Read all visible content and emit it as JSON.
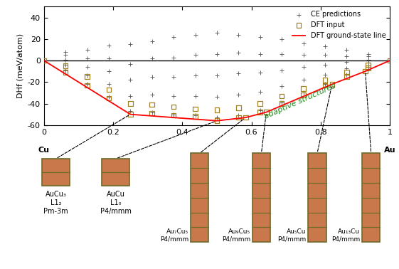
{
  "chart_data": {
    "type": "scatter",
    "y_label": "DHf (meV/atom)",
    "xlim": [
      0,
      1
    ],
    "ylim": [
      -60,
      50
    ],
    "xticks": [
      0,
      0.2,
      0.4,
      0.6,
      0.8,
      1
    ],
    "yticks": [
      -60,
      -40,
      -20,
      0,
      20,
      40
    ],
    "grid": false,
    "legend": "upper right",
    "reference_line": 0,
    "x_end_labels": [
      "Cu",
      "Au"
    ],
    "annotations": [
      {
        "text": "adaptive structures",
        "x": 0.74,
        "y": -38,
        "color": "#228b22"
      }
    ],
    "series": [
      {
        "name": "CE predictions",
        "type": "scatter",
        "color": "#555555",
        "marker": "+",
        "x": [
          0.0625,
          0.0625,
          0.0625,
          0.0625,
          0.0625,
          0.125,
          0.125,
          0.125,
          0.125,
          0.125,
          0.1875,
          0.1875,
          0.1875,
          0.1875,
          0.1875,
          0.25,
          0.25,
          0.25,
          0.25,
          0.25,
          0.3125,
          0.3125,
          0.3125,
          0.3125,
          0.3125,
          0.375,
          0.375,
          0.375,
          0.375,
          0.375,
          0.4375,
          0.4375,
          0.4375,
          0.4375,
          0.4375,
          0.5,
          0.5,
          0.5,
          0.5,
          0.5,
          0.5625,
          0.5625,
          0.5625,
          0.5625,
          0.5625,
          0.625,
          0.625,
          0.625,
          0.625,
          0.625,
          0.6875,
          0.6875,
          0.6875,
          0.6875,
          0.6875,
          0.75,
          0.75,
          0.75,
          0.75,
          0.75,
          0.8125,
          0.8125,
          0.8125,
          0.8125,
          0.8125,
          0.875,
          0.875,
          0.875,
          0.875,
          0.875,
          0.9375,
          0.9375,
          0.9375,
          0.9375,
          0.9375
        ],
        "values": [
          -9,
          -4,
          1,
          5,
          8,
          -22,
          -14,
          -6,
          2,
          10,
          -34,
          -22,
          -10,
          2,
          14,
          -47,
          -33,
          -18,
          -3,
          15,
          -48,
          -32,
          -15,
          2,
          18,
          -50,
          -33,
          -15,
          3,
          22,
          -51,
          -33,
          -14,
          5,
          24,
          -53,
          -34,
          -14,
          6,
          26,
          -51,
          -32,
          -12,
          7,
          24,
          -46,
          -29,
          -11,
          6,
          22,
          -39,
          -24,
          -9,
          6,
          20,
          -30,
          -18,
          -6,
          5,
          16,
          -22,
          -13,
          -4,
          5,
          13,
          -13,
          -7,
          -1,
          4,
          10,
          -6,
          -2,
          1,
          4,
          6
        ]
      },
      {
        "name": "DFT input",
        "type": "scatter",
        "color": "#a08020",
        "marker": "square",
        "x": [
          0,
          0.0625,
          0.0625,
          0.125,
          0.125,
          0.1875,
          0.1875,
          0.25,
          0.25,
          0.3125,
          0.3125,
          0.375,
          0.375,
          0.4375,
          0.4375,
          0.5,
          0.5,
          0.5625,
          0.5625,
          0.583,
          0.625,
          0.625,
          0.643,
          0.6875,
          0.6875,
          0.75,
          0.75,
          0.8125,
          0.8125,
          0.833,
          0.875,
          0.875,
          0.929,
          0.9375,
          0.9375,
          1
        ],
        "values": [
          0,
          -11,
          -5,
          -23,
          -15,
          -35,
          -27,
          -50,
          -40,
          -49,
          -41,
          -51,
          -43,
          -52,
          -45,
          -56,
          -46,
          -53,
          -44,
          -53,
          -48,
          -40,
          -48,
          -40,
          -33,
          -32,
          -26,
          -23,
          -18,
          -22,
          -15,
          -11,
          -10,
          -7,
          -4,
          0
        ]
      },
      {
        "name": "DFT ground-state line",
        "type": "line",
        "color": "#ff0000",
        "marker": "none",
        "x": [
          0,
          0.25,
          0.5,
          0.583,
          0.643,
          0.833,
          0.929,
          1
        ],
        "values": [
          0,
          -50,
          -56,
          -53,
          -48,
          -22,
          -10,
          0
        ]
      }
    ],
    "structures": [
      {
        "composition": 0.25,
        "energy": -50,
        "lines": [
          "AuCu₃",
          "L1₂",
          "Pm-3m"
        ]
      },
      {
        "composition": 0.5,
        "energy": -56,
        "lines": [
          "AuCu",
          "L1₀",
          "P4/mmm"
        ]
      },
      {
        "composition": 0.583,
        "energy": -53,
        "lines": [
          "Au₇Cu₅",
          "P4/mmm"
        ]
      },
      {
        "composition": 0.643,
        "energy": -48,
        "lines": [
          "Au₉Cu₅",
          "P4/mmm"
        ]
      },
      {
        "composition": 0.833,
        "energy": -22,
        "lines": [
          "Au₅Cu",
          "P4/mmm"
        ]
      },
      {
        "composition": 0.929,
        "energy": -10,
        "lines": [
          "Au₁₃Cu",
          "P4/mmm"
        ]
      }
    ]
  }
}
